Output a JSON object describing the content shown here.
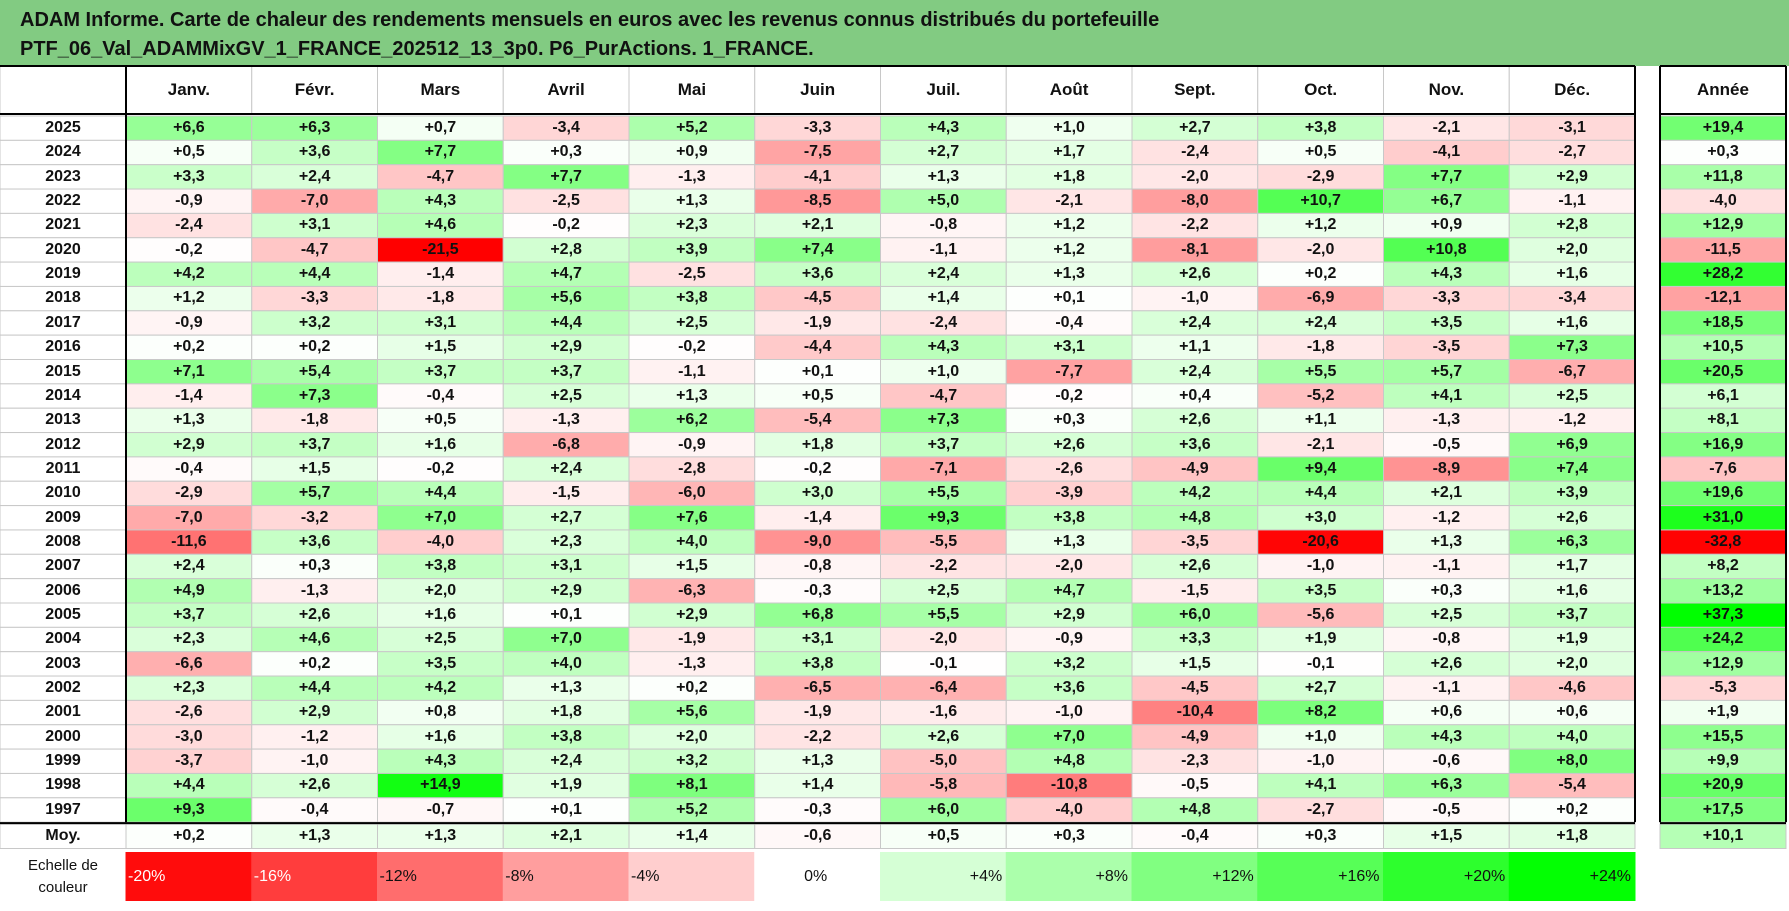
{
  "title": {
    "line1": "ADAM Informe. Carte de chaleur des rendements mensuels en euros avec les revenus connus distribués du portefeuille",
    "line2": "PTF_06_Val_ADAMMixGV_1_FRANCE_202512_13_3p0. P6_PurActions. 1_FRANCE."
  },
  "chart_data": {
    "type": "heatmap",
    "months": [
      "Janv.",
      "Févr.",
      "Mars",
      "Avril",
      "Mai",
      "Juin",
      "Juil.",
      "Août",
      "Sept.",
      "Oct.",
      "Nov.",
      "Déc."
    ],
    "year_header": "Année",
    "rows": [
      {
        "year": "2025",
        "values": [
          "+6,6",
          "+6,3",
          "+0,7",
          "-3,4",
          "+5,2",
          "-3,3",
          "+4,3",
          "+1,0",
          "+2,7",
          "+3,8",
          "-2,1",
          "-3,1"
        ],
        "annual": "+19,4"
      },
      {
        "year": "2024",
        "values": [
          "+0,5",
          "+3,6",
          "+7,7",
          "+0,3",
          "+0,9",
          "-7,5",
          "+2,7",
          "+1,7",
          "-2,4",
          "+0,5",
          "-4,1",
          "-2,7"
        ],
        "annual": "+0,3"
      },
      {
        "year": "2023",
        "values": [
          "+3,3",
          "+2,4",
          "-4,7",
          "+7,7",
          "-1,3",
          "-4,1",
          "+1,3",
          "+1,8",
          "-2,0",
          "-2,9",
          "+7,7",
          "+2,9"
        ],
        "annual": "+11,8"
      },
      {
        "year": "2022",
        "values": [
          "-0,9",
          "-7,0",
          "+4,3",
          "-2,5",
          "+1,3",
          "-8,5",
          "+5,0",
          "-2,1",
          "-8,0",
          "+10,7",
          "+6,7",
          "-1,1"
        ],
        "annual": "-4,0"
      },
      {
        "year": "2021",
        "values": [
          "-2,4",
          "+3,1",
          "+4,6",
          "-0,2",
          "+2,3",
          "+2,1",
          "-0,8",
          "+1,2",
          "-2,2",
          "+1,2",
          "+0,9",
          "+2,8"
        ],
        "annual": "+12,9"
      },
      {
        "year": "2020",
        "values": [
          "-0,2",
          "-4,7",
          "-21,5",
          "+2,8",
          "+3,9",
          "+7,4",
          "-1,1",
          "+1,2",
          "-8,1",
          "-2,0",
          "+10,8",
          "+2,0"
        ],
        "annual": "-11,5"
      },
      {
        "year": "2019",
        "values": [
          "+4,2",
          "+4,4",
          "-1,4",
          "+4,7",
          "-2,5",
          "+3,6",
          "+2,4",
          "+1,3",
          "+2,6",
          "+0,2",
          "+4,3",
          "+1,6"
        ],
        "annual": "+28,2"
      },
      {
        "year": "2018",
        "values": [
          "+1,2",
          "-3,3",
          "-1,8",
          "+5,6",
          "+3,8",
          "-4,5",
          "+1,4",
          "+0,1",
          "-1,0",
          "-6,9",
          "-3,3",
          "-3,4"
        ],
        "annual": "-12,1"
      },
      {
        "year": "2017",
        "values": [
          "-0,9",
          "+3,2",
          "+3,1",
          "+4,4",
          "+2,5",
          "-1,9",
          "-2,4",
          "-0,4",
          "+2,4",
          "+2,4",
          "+3,5",
          "+1,6"
        ],
        "annual": "+18,5"
      },
      {
        "year": "2016",
        "values": [
          "+0,2",
          "+0,2",
          "+1,5",
          "+2,9",
          "-0,2",
          "-4,4",
          "+4,3",
          "+3,1",
          "+1,1",
          "-1,8",
          "-3,5",
          "+7,3"
        ],
        "annual": "+10,5"
      },
      {
        "year": "2015",
        "values": [
          "+7,1",
          "+5,4",
          "+3,7",
          "+3,7",
          "-1,1",
          "+0,1",
          "+1,0",
          "-7,7",
          "+2,4",
          "+5,5",
          "+5,7",
          "-6,7"
        ],
        "annual": "+20,5"
      },
      {
        "year": "2014",
        "values": [
          "-1,4",
          "+7,3",
          "-0,4",
          "+2,5",
          "+1,3",
          "+0,5",
          "-4,7",
          "-0,2",
          "+0,4",
          "-5,2",
          "+4,1",
          "+2,5"
        ],
        "annual": "+6,1"
      },
      {
        "year": "2013",
        "values": [
          "+1,3",
          "-1,8",
          "+0,5",
          "-1,3",
          "+6,2",
          "-5,4",
          "+7,3",
          "+0,3",
          "+2,6",
          "+1,1",
          "-1,3",
          "-1,2"
        ],
        "annual": "+8,1"
      },
      {
        "year": "2012",
        "values": [
          "+2,9",
          "+3,7",
          "+1,6",
          "-6,8",
          "-0,9",
          "+1,8",
          "+3,7",
          "+2,6",
          "+3,6",
          "-2,1",
          "-0,5",
          "+6,9"
        ],
        "annual": "+16,9"
      },
      {
        "year": "2011",
        "values": [
          "-0,4",
          "+1,5",
          "-0,2",
          "+2,4",
          "-2,8",
          "-0,2",
          "-7,1",
          "-2,6",
          "-4,9",
          "+9,4",
          "-8,9",
          "+7,4"
        ],
        "annual": "-7,6"
      },
      {
        "year": "2010",
        "values": [
          "-2,9",
          "+5,7",
          "+4,4",
          "-1,5",
          "-6,0",
          "+3,0",
          "+5,5",
          "-3,9",
          "+4,2",
          "+4,4",
          "+2,1",
          "+3,9"
        ],
        "annual": "+19,6"
      },
      {
        "year": "2009",
        "values": [
          "-7,0",
          "-3,2",
          "+7,0",
          "+2,7",
          "+7,6",
          "-1,4",
          "+9,3",
          "+3,8",
          "+4,8",
          "+3,0",
          "-1,2",
          "+2,6"
        ],
        "annual": "+31,0"
      },
      {
        "year": "2008",
        "values": [
          "-11,6",
          "+3,6",
          "-4,0",
          "+2,3",
          "+4,0",
          "-9,0",
          "-5,5",
          "+1,3",
          "-3,5",
          "-20,6",
          "+1,3",
          "+6,3"
        ],
        "annual": "-32,8"
      },
      {
        "year": "2007",
        "values": [
          "+2,4",
          "+0,3",
          "+3,8",
          "+3,1",
          "+1,5",
          "-0,8",
          "-2,2",
          "-2,0",
          "+2,6",
          "-1,0",
          "-1,1",
          "+1,7"
        ],
        "annual": "+8,2"
      },
      {
        "year": "2006",
        "values": [
          "+4,9",
          "-1,3",
          "+2,0",
          "+2,9",
          "-6,3",
          "-0,3",
          "+2,5",
          "+4,7",
          "-1,5",
          "+3,5",
          "+0,3",
          "+1,6"
        ],
        "annual": "+13,2"
      },
      {
        "year": "2005",
        "values": [
          "+3,7",
          "+2,6",
          "+1,6",
          "+0,1",
          "+2,9",
          "+6,8",
          "+5,5",
          "+2,9",
          "+6,0",
          "-5,6",
          "+2,5",
          "+3,7"
        ],
        "annual": "+37,3"
      },
      {
        "year": "2004",
        "values": [
          "+2,3",
          "+4,6",
          "+2,5",
          "+7,0",
          "-1,9",
          "+3,1",
          "-2,0",
          "-0,9",
          "+3,3",
          "+1,9",
          "-0,8",
          "+1,9"
        ],
        "annual": "+24,2"
      },
      {
        "year": "2003",
        "values": [
          "-6,6",
          "+0,2",
          "+3,5",
          "+4,0",
          "-1,3",
          "+3,8",
          "-0,1",
          "+3,2",
          "+1,5",
          "-0,1",
          "+2,6",
          "+2,0"
        ],
        "annual": "+12,9"
      },
      {
        "year": "2002",
        "values": [
          "+2,3",
          "+4,4",
          "+4,2",
          "+1,3",
          "+0,2",
          "-6,5",
          "-6,4",
          "+3,6",
          "-4,5",
          "+2,7",
          "-1,1",
          "-4,6"
        ],
        "annual": "-5,3"
      },
      {
        "year": "2001",
        "values": [
          "-2,6",
          "+2,9",
          "+0,8",
          "+1,8",
          "+5,6",
          "-1,9",
          "-1,6",
          "-1,0",
          "-10,4",
          "+8,2",
          "+0,6",
          "+0,6"
        ],
        "annual": "+1,9"
      },
      {
        "year": "2000",
        "values": [
          "-3,0",
          "-1,2",
          "+1,6",
          "+3,8",
          "+2,0",
          "-2,2",
          "+2,6",
          "+7,0",
          "-4,9",
          "+1,0",
          "+4,3",
          "+4,0"
        ],
        "annual": "+15,5"
      },
      {
        "year": "1999",
        "values": [
          "-3,7",
          "-1,0",
          "+4,3",
          "+2,4",
          "+3,2",
          "+1,3",
          "-5,0",
          "+4,8",
          "-2,3",
          "-1,0",
          "-0,6",
          "+8,0"
        ],
        "annual": "+9,9"
      },
      {
        "year": "1998",
        "values": [
          "+4,4",
          "+2,6",
          "+14,9",
          "+1,9",
          "+8,1",
          "+1,4",
          "-5,8",
          "-10,8",
          "-0,5",
          "+4,1",
          "+6,3",
          "-5,4"
        ],
        "annual": "+20,9"
      },
      {
        "year": "1997",
        "values": [
          "+9,3",
          "-0,4",
          "-0,7",
          "+0,1",
          "+5,2",
          "-0,3",
          "+6,0",
          "-4,0",
          "+4,8",
          "-2,7",
          "-0,5",
          "+0,2"
        ],
        "annual": "+17,5"
      }
    ],
    "average": {
      "label": "Moy.",
      "values": [
        "+0,2",
        "+1,3",
        "+1,3",
        "+2,1",
        "+1,4",
        "-0,6",
        "+0,5",
        "+0,3",
        "-0,4",
        "+0,3",
        "+1,5",
        "+1,8"
      ],
      "annual": "+10,1"
    },
    "scale": {
      "label_line1": "Echelle de",
      "label_line2": "couleur",
      "steps": [
        "-20%",
        "-16%",
        "-12%",
        "-8%",
        "-4%",
        "0%",
        "+4%",
        "+8%",
        "+12%",
        "+16%",
        "+20%",
        "+24%"
      ]
    },
    "colors": {
      "header_band": "#82cb82",
      "max_red": "#ff0000",
      "max_green": "#00ff00",
      "neutral": "#ffffff"
    }
  }
}
